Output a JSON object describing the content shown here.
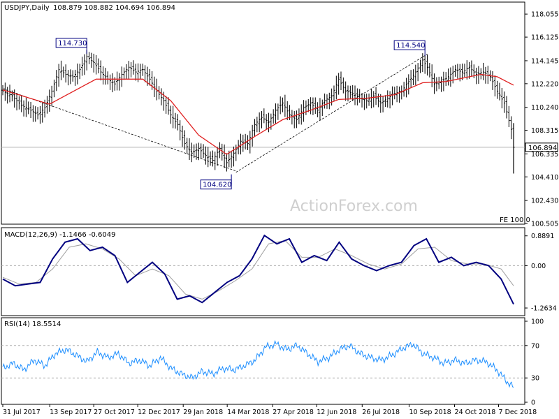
{
  "chart_data": [
    {
      "type": "ohlc",
      "title": "USDJPY,Daily",
      "header_values": "108.879 108.882 104.694 106.894",
      "ylim": [
        100.505,
        119.0
      ],
      "y_ticks": [
        {
          "value": 118.055,
          "label": "118.055"
        },
        {
          "value": 116.125,
          "label": "116.125"
        },
        {
          "value": 114.145,
          "label": "114.145"
        },
        {
          "value": 112.22,
          "label": "112.220"
        },
        {
          "value": 110.24,
          "label": "110.240"
        },
        {
          "value": 108.315,
          "label": "108.315"
        },
        {
          "value": 106.335,
          "label": "106.335"
        },
        {
          "value": 104.41,
          "label": "104.410"
        },
        {
          "value": 102.43,
          "label": "102.430"
        },
        {
          "value": 100.505,
          "label": "100.505"
        }
      ],
      "last_price": {
        "value": 106.894,
        "label": "106.894"
      },
      "fe_label": "FE 100.0",
      "watermark": "ActionForex.com",
      "annotations": [
        {
          "label": "114.730",
          "value": 114.73,
          "date": "Sep 2017"
        },
        {
          "label": "104.620",
          "value": 104.62,
          "date": "Mar 2018"
        },
        {
          "label": "114.540",
          "value": 114.54,
          "date": "Oct 2018"
        }
      ],
      "price_series": [
        [
          0,
          111.6
        ],
        [
          4,
          111.2
        ],
        [
          8,
          110.4
        ],
        [
          12,
          110.0
        ],
        [
          15,
          109.6
        ],
        [
          18,
          110.2
        ],
        [
          21,
          111.6
        ],
        [
          24,
          113.4
        ],
        [
          27,
          113.0
        ],
        [
          30,
          112.8
        ],
        [
          33,
          113.4
        ],
        [
          36,
          114.5
        ],
        [
          39,
          114.0
        ],
        [
          42,
          113.2
        ],
        [
          45,
          112.6
        ],
        [
          48,
          112.2
        ],
        [
          51,
          113.0
        ],
        [
          54,
          113.6
        ],
        [
          57,
          113.2
        ],
        [
          60,
          113.4
        ],
        [
          63,
          112.6
        ],
        [
          66,
          111.6
        ],
        [
          69,
          110.8
        ],
        [
          72,
          109.6
        ],
        [
          75,
          108.8
        ],
        [
          78,
          107.2
        ],
        [
          81,
          106.4
        ],
        [
          84,
          106.8
        ],
        [
          87,
          106.2
        ],
        [
          90,
          105.8
        ],
        [
          93,
          106.8
        ],
        [
          96,
          105.6
        ],
        [
          99,
          106.4
        ],
        [
          102,
          107.4
        ],
        [
          105,
          107.2
        ],
        [
          108,
          108.8
        ],
        [
          111,
          109.4
        ],
        [
          114,
          109.0
        ],
        [
          117,
          110.0
        ],
        [
          120,
          110.6
        ],
        [
          123,
          109.6
        ],
        [
          126,
          109.2
        ],
        [
          129,
          110.2
        ],
        [
          132,
          110.6
        ],
        [
          135,
          110.0
        ],
        [
          138,
          110.8
        ],
        [
          141,
          111.2
        ],
        [
          144,
          112.6
        ],
        [
          147,
          111.6
        ],
        [
          150,
          111.4
        ],
        [
          153,
          111.0
        ],
        [
          156,
          110.8
        ],
        [
          159,
          111.2
        ],
        [
          162,
          110.6
        ],
        [
          165,
          111.0
        ],
        [
          168,
          111.4
        ],
        [
          171,
          111.6
        ],
        [
          174,
          112.4
        ],
        [
          177,
          113.2
        ],
        [
          180,
          114.2
        ],
        [
          182,
          113.6
        ],
        [
          185,
          112.2
        ],
        [
          188,
          112.4
        ],
        [
          191,
          112.8
        ],
        [
          194,
          113.4
        ],
        [
          197,
          113.2
        ],
        [
          200,
          113.6
        ],
        [
          203,
          113.0
        ],
        [
          206,
          113.2
        ],
        [
          209,
          112.8
        ],
        [
          212,
          111.6
        ],
        [
          215,
          110.6
        ],
        [
          218,
          108.4
        ],
        [
          219,
          106.89
        ]
      ],
      "ma_series": [
        [
          0,
          111.7
        ],
        [
          20,
          110.5
        ],
        [
          40,
          112.6
        ],
        [
          60,
          112.6
        ],
        [
          72,
          110.8
        ],
        [
          84,
          107.9
        ],
        [
          96,
          106.3
        ],
        [
          108,
          107.8
        ],
        [
          120,
          109.2
        ],
        [
          132,
          110.0
        ],
        [
          144,
          110.9
        ],
        [
          156,
          111.0
        ],
        [
          168,
          111.3
        ],
        [
          180,
          112.3
        ],
        [
          190,
          112.4
        ],
        [
          205,
          113.0
        ],
        [
          212,
          112.8
        ],
        [
          219,
          112.1
        ]
      ],
      "trendlines": [
        {
          "from": [
            0,
            111.8
          ],
          "to": [
            100,
            104.9
          ]
        },
        {
          "from": [
            100,
            104.8
          ],
          "to": [
            182,
            114.7
          ]
        }
      ],
      "x_ticks": [
        {
          "index": 0,
          "label": "31 Jul 2017"
        },
        {
          "index": 32,
          "label": "13 Sep 2017"
        },
        {
          "index": 62,
          "label": "27 Oct 2017"
        },
        {
          "index": 92,
          "label": "12 Dec 2017"
        },
        {
          "index": 123,
          "label": "29 Jan 2018"
        },
        {
          "index": 153,
          "label": "14 Mar 2018"
        },
        {
          "index": 184,
          "label": "27 Apr 2018"
        },
        {
          "index": 214,
          "label": "12 Jun 2018"
        },
        {
          "index": 245,
          "label": "26 Jul 2018"
        },
        {
          "index": 277,
          "label": "10 Sep 2018"
        },
        {
          "index": 308,
          "label": "24 Oct 2018"
        },
        {
          "index": 338,
          "label": "7 Dec 2018"
        }
      ]
    },
    {
      "type": "line",
      "title": "MACD(12,26,9) -1.1466 -0.6049",
      "ylim": [
        -1.45,
        1.05
      ],
      "y_ticks": [
        {
          "value": 0.8891,
          "label": "0.8891"
        },
        {
          "value": 0.0,
          "label": "0.00"
        },
        {
          "value": -1.2634,
          "label": "-1.2634"
        }
      ],
      "macd": [
        [
          0,
          -0.4
        ],
        [
          6,
          -0.6
        ],
        [
          12,
          -0.55
        ],
        [
          18,
          -0.5
        ],
        [
          24,
          0.2
        ],
        [
          30,
          0.7
        ],
        [
          36,
          0.8
        ],
        [
          42,
          0.45
        ],
        [
          48,
          0.55
        ],
        [
          54,
          0.3
        ],
        [
          60,
          -0.5
        ],
        [
          66,
          -0.2
        ],
        [
          72,
          0.1
        ],
        [
          78,
          -0.25
        ],
        [
          84,
          -1.0
        ],
        [
          90,
          -0.9
        ],
        [
          96,
          -1.1
        ],
        [
          102,
          -0.8
        ],
        [
          108,
          -0.5
        ],
        [
          114,
          -0.3
        ],
        [
          120,
          0.2
        ],
        [
          126,
          0.9
        ],
        [
          132,
          0.65
        ],
        [
          138,
          0.8
        ],
        [
          144,
          0.1
        ],
        [
          150,
          0.3
        ],
        [
          156,
          0.15
        ],
        [
          162,
          0.7
        ],
        [
          168,
          0.2
        ],
        [
          174,
          0.0
        ],
        [
          180,
          -0.15
        ],
        [
          186,
          0.0
        ],
        [
          192,
          0.1
        ],
        [
          198,
          0.6
        ],
        [
          204,
          0.8
        ],
        [
          210,
          0.1
        ],
        [
          216,
          0.25
        ],
        [
          222,
          0.0
        ],
        [
          228,
          0.1
        ],
        [
          234,
          0.0
        ],
        [
          240,
          -0.4
        ],
        [
          246,
          -1.15
        ]
      ],
      "signal": [
        [
          0,
          -0.35
        ],
        [
          8,
          -0.55
        ],
        [
          16,
          -0.5
        ],
        [
          24,
          -0.1
        ],
        [
          32,
          0.55
        ],
        [
          40,
          0.65
        ],
        [
          48,
          0.5
        ],
        [
          56,
          0.2
        ],
        [
          64,
          -0.3
        ],
        [
          72,
          -0.1
        ],
        [
          80,
          -0.3
        ],
        [
          88,
          -0.85
        ],
        [
          96,
          -1.0
        ],
        [
          104,
          -0.75
        ],
        [
          112,
          -0.45
        ],
        [
          120,
          -0.1
        ],
        [
          128,
          0.65
        ],
        [
          136,
          0.75
        ],
        [
          144,
          0.25
        ],
        [
          152,
          0.25
        ],
        [
          160,
          0.5
        ],
        [
          168,
          0.3
        ],
        [
          176,
          0.05
        ],
        [
          184,
          -0.1
        ],
        [
          192,
          0.05
        ],
        [
          200,
          0.5
        ],
        [
          208,
          0.55
        ],
        [
          216,
          0.15
        ],
        [
          224,
          0.05
        ],
        [
          232,
          0.05
        ],
        [
          240,
          -0.1
        ],
        [
          246,
          -0.6
        ]
      ]
    },
    {
      "type": "line",
      "title": "RSI(14) 18.5514",
      "ylim": [
        0,
        100
      ],
      "y_ticks": [
        {
          "value": 100,
          "label": "100"
        },
        {
          "value": 70,
          "label": "70"
        },
        {
          "value": 30,
          "label": "30"
        },
        {
          "value": 0,
          "label": "0"
        }
      ],
      "levels": [
        70,
        30
      ],
      "rsi": [
        [
          0,
          42
        ],
        [
          5,
          48
        ],
        [
          10,
          40
        ],
        [
          15,
          52
        ],
        [
          20,
          45
        ],
        [
          25,
          60
        ],
        [
          30,
          65
        ],
        [
          35,
          58
        ],
        [
          40,
          50
        ],
        [
          45,
          62
        ],
        [
          50,
          55
        ],
        [
          55,
          60
        ],
        [
          60,
          48
        ],
        [
          65,
          52
        ],
        [
          70,
          45
        ],
        [
          75,
          55
        ],
        [
          80,
          42
        ],
        [
          85,
          35
        ],
        [
          90,
          30
        ],
        [
          95,
          38
        ],
        [
          100,
          35
        ],
        [
          105,
          42
        ],
        [
          110,
          40
        ],
        [
          115,
          45
        ],
        [
          120,
          52
        ],
        [
          125,
          68
        ],
        [
          130,
          72
        ],
        [
          135,
          65
        ],
        [
          140,
          70
        ],
        [
          145,
          60
        ],
        [
          150,
          50
        ],
        [
          155,
          55
        ],
        [
          160,
          65
        ],
        [
          165,
          70
        ],
        [
          170,
          60
        ],
        [
          175,
          55
        ],
        [
          180,
          52
        ],
        [
          185,
          58
        ],
        [
          190,
          66
        ],
        [
          195,
          72
        ],
        [
          200,
          60
        ],
        [
          205,
          55
        ],
        [
          210,
          48
        ],
        [
          215,
          52
        ],
        [
          220,
          48
        ],
        [
          225,
          52
        ],
        [
          230,
          50
        ],
        [
          235,
          40
        ],
        [
          240,
          25
        ],
        [
          243,
          18.55
        ]
      ]
    }
  ]
}
